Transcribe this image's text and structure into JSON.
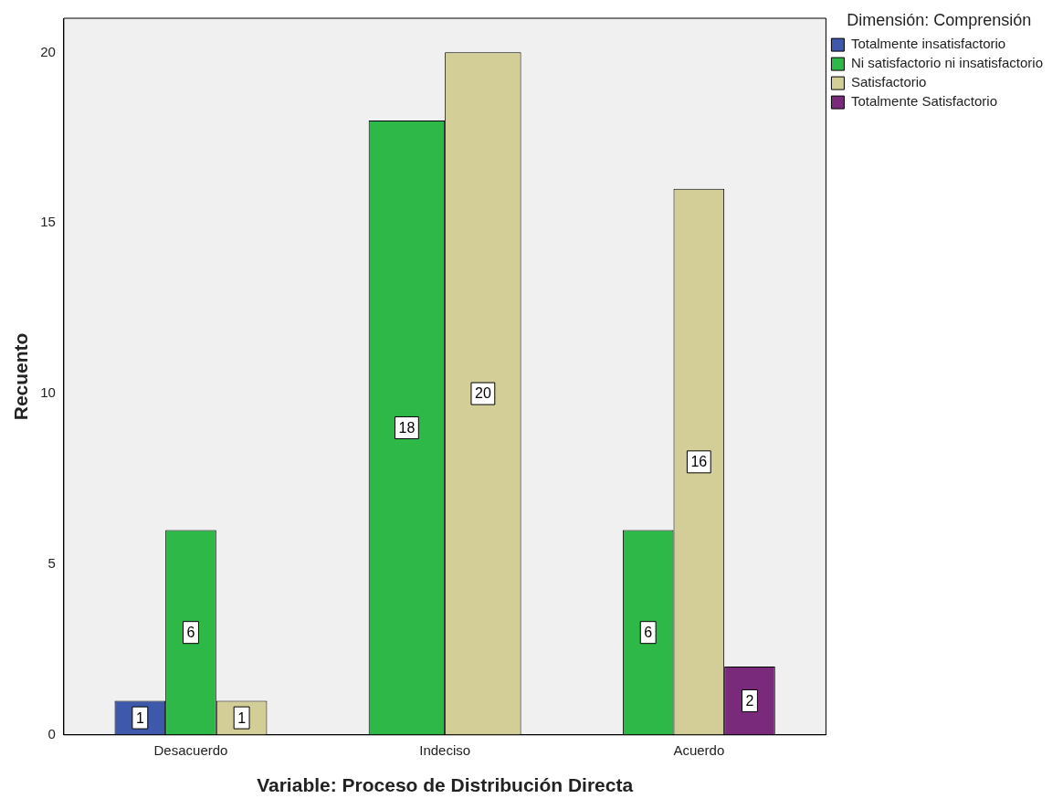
{
  "chart_data": {
    "type": "bar",
    "xlabel": "Variable: Proceso de Distribución Directa",
    "ylabel": "Recuento",
    "legend_title": "Dimensión: Comprensión",
    "categories": [
      "Desacuerdo",
      "Indeciso",
      "Acuerdo"
    ],
    "series": [
      {
        "name": "Totalmente insatisfactorio",
        "color": "#3e58ac",
        "values": [
          1,
          null,
          null
        ]
      },
      {
        "name": "Ni satisfactorio ni insatisfactorio",
        "color": "#2eb848",
        "values": [
          6,
          18,
          6
        ]
      },
      {
        "name": "Satisfactorio",
        "color": "#d3ce97",
        "values": [
          1,
          20,
          16
        ]
      },
      {
        "name": "Totalmente Satisfactorio",
        "color": "#7a2a7a",
        "values": [
          null,
          null,
          2
        ]
      }
    ],
    "ylim": [
      0,
      21
    ],
    "yticks": [
      0,
      5,
      10,
      15,
      20
    ],
    "grid": false,
    "legend": "top right",
    "data_labels": true
  }
}
